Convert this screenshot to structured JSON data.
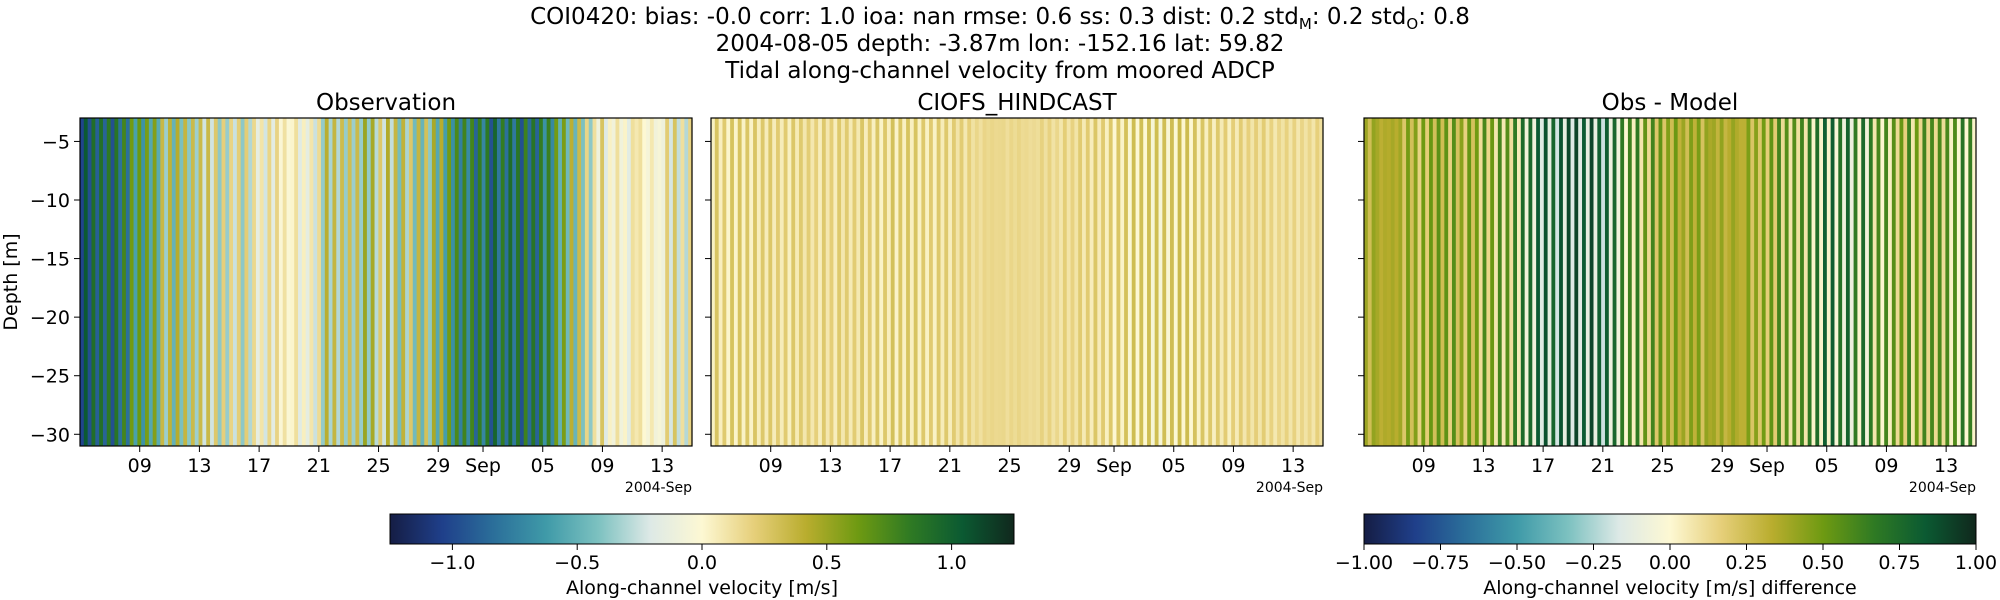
{
  "figure": {
    "title_line1_prefix": "COI0420: bias: -0.0  corr: 1.0  ioa: nan  rmse: 0.6  ss: 0.3  dist: 0.2  std",
    "title_line1_sub_m": "M",
    "title_line1_mid": ": 0.2  std",
    "title_line1_sub_o": "O",
    "title_line1_suffix": ": 0.8",
    "title_line2": "2004-08-05 depth: -3.87m lon: -152.16 lat: 59.82",
    "title_line3": "Tidal along-channel velocity from moored ADCP"
  },
  "chart_data": [
    {
      "type": "heatmap",
      "title": "Observation",
      "ylabel": "Depth [m]",
      "xlabel": "",
      "ylim": [
        -31,
        -3
      ],
      "yticks": [
        -5,
        -10,
        -15,
        -20,
        -25,
        -30
      ],
      "xlim": [
        "2004-08-05",
        "2004-09-15"
      ],
      "xticks": [
        {
          "date": "2004-08-09",
          "label": "09"
        },
        {
          "date": "2004-08-13",
          "label": "13"
        },
        {
          "date": "2004-08-17",
          "label": "17"
        },
        {
          "date": "2004-08-21",
          "label": "21"
        },
        {
          "date": "2004-08-25",
          "label": "25"
        },
        {
          "date": "2004-08-29",
          "label": "29"
        },
        {
          "date": "2004-09-01",
          "label": "Sep"
        },
        {
          "date": "2004-09-05",
          "label": "05"
        },
        {
          "date": "2004-09-09",
          "label": "09"
        },
        {
          "date": "2004-09-13",
          "label": "13"
        }
      ],
      "x_offset_label": "2004-Sep",
      "colorscale": "velocity",
      "vmin": -1.25,
      "vmax": 1.25,
      "amplitude": 1.0,
      "bias": 0.0
    },
    {
      "type": "heatmap",
      "title": "CIOFS_HINDCAST",
      "ylabel": "",
      "xlabel": "",
      "ylim": [
        -31,
        -3
      ],
      "xlim": [
        "2004-08-05",
        "2004-09-15"
      ],
      "xticks": [
        {
          "date": "2004-08-09",
          "label": "09"
        },
        {
          "date": "2004-08-13",
          "label": "13"
        },
        {
          "date": "2004-08-17",
          "label": "17"
        },
        {
          "date": "2004-08-21",
          "label": "21"
        },
        {
          "date": "2004-08-25",
          "label": "25"
        },
        {
          "date": "2004-08-29",
          "label": "29"
        },
        {
          "date": "2004-09-01",
          "label": "Sep"
        },
        {
          "date": "2004-09-05",
          "label": "05"
        },
        {
          "date": "2004-09-09",
          "label": "09"
        },
        {
          "date": "2004-09-13",
          "label": "13"
        }
      ],
      "x_offset_label": "2004-Sep",
      "colorscale": "velocity",
      "vmin": -1.25,
      "vmax": 1.25,
      "amplitude": 0.18,
      "bias": 0.15
    },
    {
      "type": "heatmap",
      "title": "Obs - Model",
      "ylabel": "",
      "xlabel": "",
      "ylim": [
        -31,
        -3
      ],
      "xlim": [
        "2004-08-05",
        "2004-09-15"
      ],
      "xticks": [
        {
          "date": "2004-08-09",
          "label": "09"
        },
        {
          "date": "2004-08-13",
          "label": "13"
        },
        {
          "date": "2004-08-17",
          "label": "17"
        },
        {
          "date": "2004-08-21",
          "label": "21"
        },
        {
          "date": "2004-08-25",
          "label": "25"
        },
        {
          "date": "2004-08-29",
          "label": "29"
        },
        {
          "date": "2004-09-01",
          "label": "Sep"
        },
        {
          "date": "2004-09-05",
          "label": "05"
        },
        {
          "date": "2004-09-09",
          "label": "09"
        },
        {
          "date": "2004-09-13",
          "label": "13"
        }
      ],
      "x_offset_label": "2004-Sep",
      "colorscale": "difference",
      "vmin": -1.0,
      "vmax": 1.0,
      "amplitude": 0.55,
      "bias": 0.35
    }
  ],
  "colorbars": [
    {
      "label": "Along-channel velocity [m/s]",
      "vmin": -1.25,
      "vmax": 1.25,
      "ticks": [
        {
          "value": -1.0,
          "label": "−1.0"
        },
        {
          "value": -0.5,
          "label": "−0.5"
        },
        {
          "value": 0.0,
          "label": "0.0"
        },
        {
          "value": 0.5,
          "label": "0.5"
        },
        {
          "value": 1.0,
          "label": "1.0"
        }
      ]
    },
    {
      "label": "Along-channel velocity [m/s] difference",
      "vmin": -1.0,
      "vmax": 1.0,
      "ticks": [
        {
          "value": -1.0,
          "label": "−1.00"
        },
        {
          "value": -0.75,
          "label": "−0.75"
        },
        {
          "value": -0.5,
          "label": "−0.50"
        },
        {
          "value": -0.25,
          "label": "−0.25"
        },
        {
          "value": 0.0,
          "label": "0.00"
        },
        {
          "value": 0.25,
          "label": "0.25"
        },
        {
          "value": 0.5,
          "label": "0.50"
        },
        {
          "value": 0.75,
          "label": "0.75"
        },
        {
          "value": 1.0,
          "label": "1.00"
        }
      ]
    }
  ],
  "colormap": [
    "#151d44",
    "#1f3f8a",
    "#2b6f9a",
    "#3f9aa8",
    "#7cc1c0",
    "#dde9e6",
    "#fdf8d3",
    "#e6cf7a",
    "#b9ad2e",
    "#6e9a12",
    "#2f7a23",
    "#0b5a32",
    "#10281d"
  ]
}
